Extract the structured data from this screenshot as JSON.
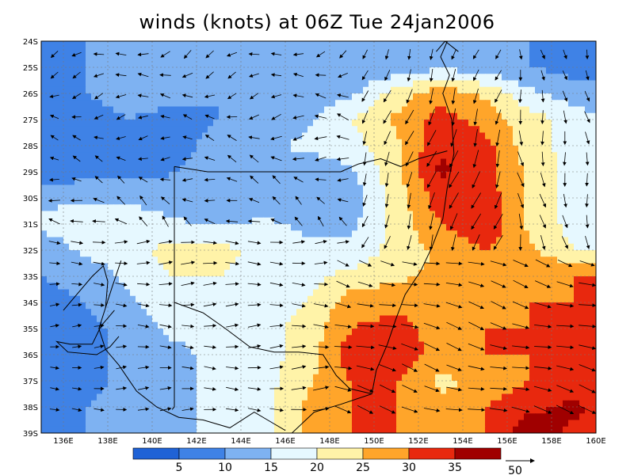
{
  "chart_data": {
    "type": "heatmap",
    "title": "winds (knots) at 06Z Tue 24jan2006",
    "xlabel": "",
    "ylabel": "",
    "xlim": [
      135,
      160
    ],
    "ylim": [
      -39,
      -24
    ],
    "x_ticks": [
      "136E",
      "138E",
      "140E",
      "142E",
      "144E",
      "146E",
      "148E",
      "150E",
      "152E",
      "154E",
      "156E",
      "158E",
      "160E"
    ],
    "y_ticks": [
      "24S",
      "25S",
      "26S",
      "27S",
      "28S",
      "29S",
      "30S",
      "31S",
      "32S",
      "33S",
      "34S",
      "35S",
      "36S",
      "37S",
      "38S",
      "39S"
    ],
    "grid": true,
    "colorbar": {
      "levels": [
        "5",
        "10",
        "15",
        "20",
        "25",
        "30",
        "35"
      ],
      "colors": [
        "#1f62d6",
        "#3f82e6",
        "#7eb2f2",
        "#e6f8ff",
        "#fff3a8",
        "#ffa52a",
        "#e8280e",
        "#a00000"
      ],
      "arrow_label": "50"
    },
    "wind_speed_field": {
      "lon": [
        135,
        137,
        139,
        141,
        143,
        145,
        147,
        149,
        151,
        153,
        155,
        157,
        159,
        160
      ],
      "lat": [
        -24,
        -25,
        -26,
        -27,
        -28,
        -29,
        -30,
        -31,
        -32,
        -33,
        -34,
        -35,
        -36,
        -37,
        -38,
        -39
      ],
      "values": [
        [
          8,
          10,
          12,
          12,
          12,
          12,
          10,
          10,
          10,
          12,
          12,
          10,
          8,
          8
        ],
        [
          8,
          10,
          12,
          14,
          10,
          10,
          10,
          10,
          12,
          14,
          12,
          10,
          8,
          8
        ],
        [
          8,
          10,
          12,
          12,
          10,
          10,
          12,
          14,
          22,
          28,
          24,
          16,
          12,
          12
        ],
        [
          6,
          8,
          10,
          8,
          10,
          12,
          14,
          20,
          26,
          32,
          28,
          22,
          18,
          16
        ],
        [
          6,
          8,
          10,
          8,
          12,
          14,
          16,
          18,
          24,
          34,
          32,
          22,
          18,
          18
        ],
        [
          6,
          8,
          8,
          10,
          12,
          14,
          12,
          14,
          24,
          36,
          32,
          24,
          18,
          18
        ],
        [
          14,
          14,
          14,
          12,
          10,
          12,
          10,
          12,
          22,
          33,
          33,
          24,
          18,
          18
        ],
        [
          16,
          18,
          18,
          16,
          14,
          16,
          14,
          14,
          22,
          30,
          34,
          24,
          18,
          18
        ],
        [
          12,
          16,
          18,
          22,
          22,
          18,
          16,
          16,
          22,
          26,
          30,
          26,
          20,
          20
        ],
        [
          10,
          12,
          16,
          20,
          20,
          18,
          18,
          22,
          24,
          26,
          26,
          28,
          30,
          30
        ],
        [
          8,
          10,
          14,
          18,
          18,
          18,
          20,
          28,
          28,
          28,
          28,
          30,
          30,
          30
        ],
        [
          6,
          8,
          12,
          16,
          16,
          18,
          22,
          30,
          32,
          28,
          30,
          30,
          30,
          30
        ],
        [
          6,
          8,
          12,
          14,
          16,
          18,
          22,
          34,
          33,
          28,
          30,
          30,
          30,
          30
        ],
        [
          6,
          8,
          12,
          14,
          16,
          18,
          24,
          30,
          30,
          24,
          26,
          30,
          32,
          32
        ],
        [
          8,
          10,
          12,
          14,
          16,
          18,
          26,
          30,
          30,
          26,
          30,
          34,
          36,
          34
        ],
        [
          8,
          10,
          12,
          14,
          16,
          18,
          26,
          30,
          30,
          26,
          30,
          38,
          34,
          32
        ]
      ]
    }
  }
}
